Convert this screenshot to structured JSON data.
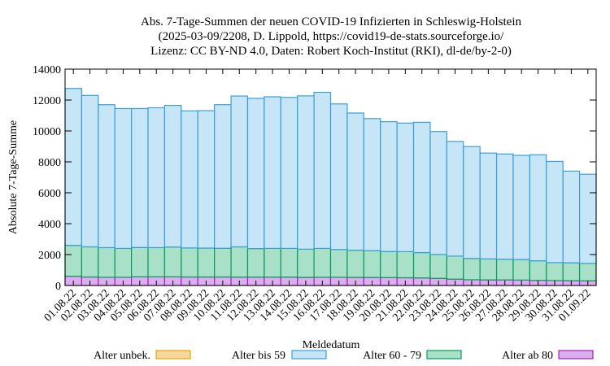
{
  "chart_data": {
    "type": "bar",
    "stacked": true,
    "title_lines": [
      "Abs. 7-Tage-Summen der neuen COVID-19 Infizierten in Schleswig-Holstein",
      "(2025-03-09/2208, D. Lippold, https://covid19-de-stats.sourceforge.io/",
      "Lizenz: CC BY-ND 4.0, Daten: Robert Koch-Institut (RKI), dl-de/by-2-0)"
    ],
    "xlabel": "Meldedatum",
    "ylabel": "Absolute 7-Tage-Summe",
    "ylim": [
      0,
      14000
    ],
    "yticks": [
      "0",
      "2000",
      "4000",
      "6000",
      "8000",
      "10000",
      "12000",
      "14000"
    ],
    "grid": false,
    "legend_position": "bottom",
    "categories": [
      "01.08.22",
      "02.08.22",
      "03.08.22",
      "04.08.22",
      "05.08.22",
      "06.08.22",
      "07.08.22",
      "08.08.22",
      "09.08.22",
      "10.08.22",
      "11.08.22",
      "12.08.22",
      "13.08.22",
      "14.08.22",
      "15.08.22",
      "16.08.22",
      "17.08.22",
      "18.08.22",
      "19.08.22",
      "20.08.22",
      "21.08.22",
      "22.08.22",
      "23.08.22",
      "24.08.22",
      "25.08.22",
      "26.08.22",
      "27.08.22",
      "28.08.22",
      "29.08.22",
      "30.08.22",
      "31.08.22",
      "01.09.22"
    ],
    "series": [
      {
        "name": "Alter unbek.",
        "color": "#f7d79a",
        "border": "#e5a50a",
        "values": [
          0,
          0,
          0,
          0,
          0,
          0,
          0,
          0,
          0,
          0,
          0,
          0,
          0,
          0,
          0,
          0,
          0,
          0,
          0,
          0,
          0,
          0,
          0,
          0,
          0,
          0,
          0,
          0,
          0,
          0,
          0,
          0
        ]
      },
      {
        "name": "Alter ab 80",
        "color": "#dcaef0",
        "border": "#9c27b0",
        "values": [
          600,
          550,
          530,
          530,
          560,
          560,
          560,
          550,
          550,
          550,
          540,
          540,
          540,
          540,
          520,
          530,
          530,
          520,
          520,
          510,
          500,
          490,
          460,
          410,
          370,
          360,
          360,
          350,
          330,
          320,
          310,
          300
        ]
      },
      {
        "name": "Alter 60 - 79",
        "color": "#a8e0c8",
        "border": "#0b9a60",
        "values": [
          2000,
          1950,
          1920,
          1870,
          1900,
          1890,
          1930,
          1880,
          1870,
          1860,
          1960,
          1850,
          1860,
          1860,
          1830,
          1870,
          1800,
          1760,
          1730,
          1690,
          1690,
          1640,
          1550,
          1490,
          1380,
          1360,
          1340,
          1330,
          1270,
          1160,
          1160,
          1130
        ]
      },
      {
        "name": "Alter bis 59",
        "color": "#c6e6f8",
        "border": "#3a9fd8",
        "values": [
          10150,
          9800,
          9250,
          9050,
          8990,
          9050,
          9160,
          8870,
          8890,
          9290,
          9760,
          9720,
          9810,
          9770,
          9920,
          10100,
          9420,
          8880,
          8550,
          8400,
          8320,
          8430,
          7950,
          7420,
          7240,
          6850,
          6810,
          6740,
          6860,
          6550,
          5930,
          5770
        ]
      }
    ]
  }
}
